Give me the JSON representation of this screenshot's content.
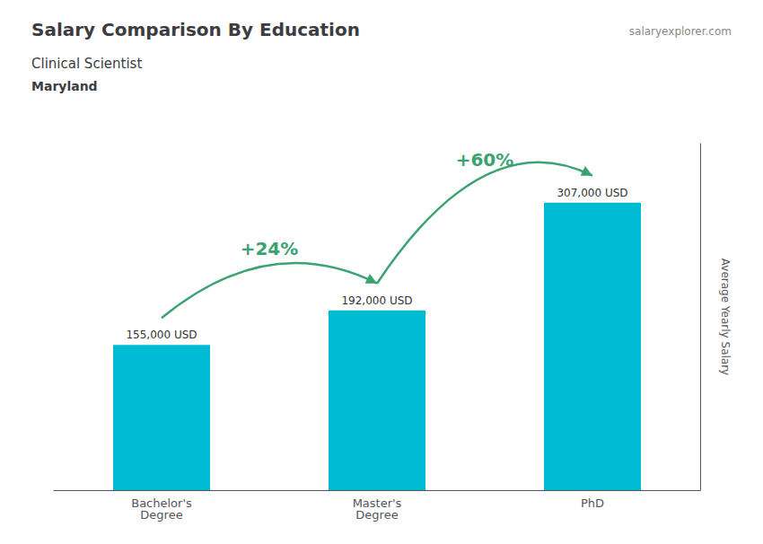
{
  "chart_data": {
    "type": "bar",
    "title": "Salary Comparison By Education",
    "subtitle": [
      "Clinical Scientist",
      "Maryland"
    ],
    "categories": [
      "Bachelor's\nDegree",
      "Master's\nDegree",
      "PhD"
    ],
    "values": [
      155000,
      192000,
      307000
    ],
    "value_labels": [
      "155,000 USD",
      "192,000 USD",
      "307,000 USD"
    ],
    "data_labels": true,
    "color": "#00bbd4",
    "ylabel": "Average Yearly Salary",
    "ylim": [
      0,
      370000
    ],
    "grid": false,
    "tick_labels": "x",
    "annotations": [
      {
        "text": "salaryexplorer.com"
      },
      {
        "text": "+24%",
        "from": "Bachelor's\nDegree",
        "to": "Master's\nDegree",
        "color": "#3ba272"
      },
      {
        "text": "+60%",
        "from": "Master's\nDegree",
        "to": "PhD",
        "color": "#3ba272"
      }
    ]
  }
}
